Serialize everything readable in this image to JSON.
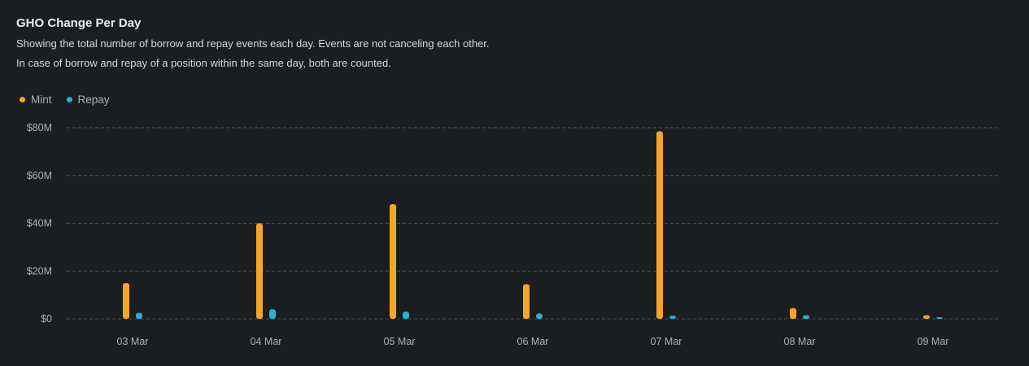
{
  "header": {
    "title": "GHO Change Per Day",
    "subtitle_line1": "Showing the total number of borrow and repay events each day. Events are not canceling each other.",
    "subtitle_line2": "In case of borrow and repay of a position within the same day, both are counted."
  },
  "legend": {
    "mint_label": "Mint",
    "repay_label": "Repay"
  },
  "colors": {
    "mint": "#f5a623",
    "repay": "#22b3d1",
    "grid": "#4a4f55",
    "background": "#1b1e21"
  },
  "chart_data": {
    "type": "bar",
    "title": "GHO Change Per Day",
    "xlabel": "",
    "ylabel": "",
    "categories": [
      "03 Mar",
      "04 Mar",
      "05 Mar",
      "06 Mar",
      "07 Mar",
      "08 Mar",
      "09 Mar"
    ],
    "series": [
      {
        "name": "Mint",
        "values": [
          15,
          40,
          48,
          14.5,
          78.5,
          4.5,
          1.5
        ]
      },
      {
        "name": "Repay",
        "values": [
          2.5,
          4,
          3,
          2.2,
          1.3,
          1.5,
          0.2
        ]
      }
    ],
    "ylim": [
      0,
      80
    ],
    "yticks": [
      0,
      20,
      40,
      60,
      80
    ],
    "ytick_labels": [
      "$0",
      "$20M",
      "$40M",
      "$60M",
      "$80M"
    ],
    "grid": true,
    "legend_position": "top-left"
  }
}
